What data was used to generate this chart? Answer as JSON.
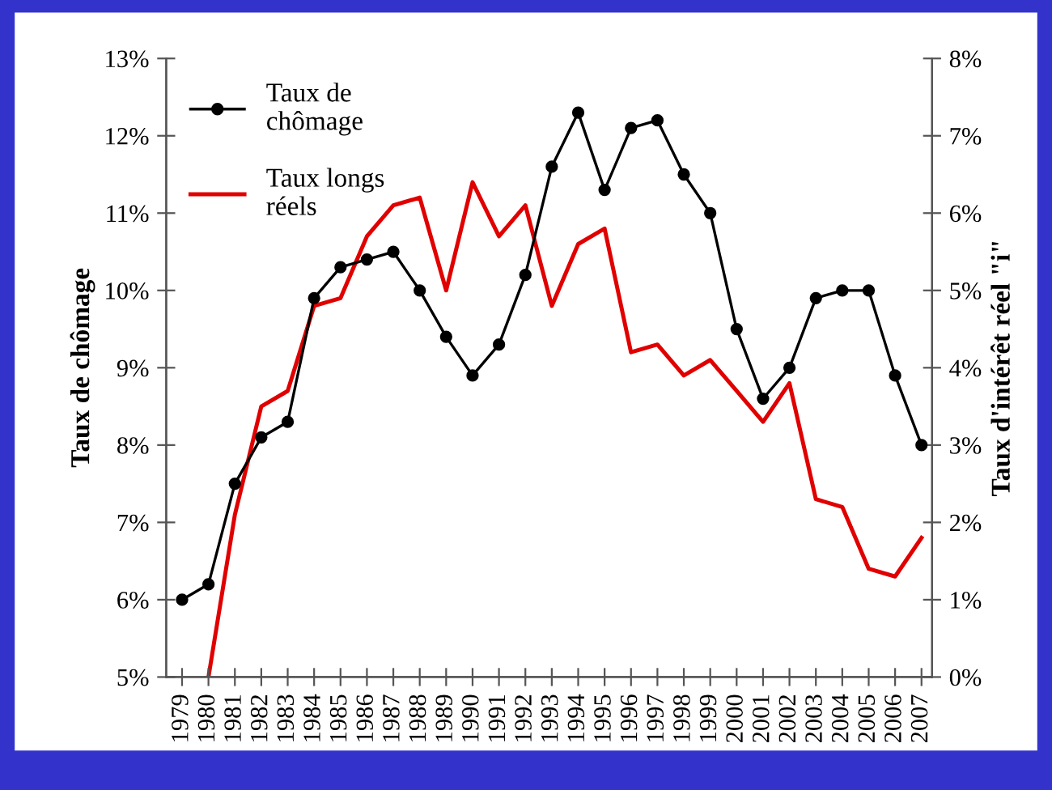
{
  "chart_data": {
    "type": "line",
    "ylabel": "Taux de chômage",
    "y2label": "Taux d'intérêt réel \"i\"",
    "categories": [
      "1979",
      "1980",
      "1981",
      "1982",
      "1983",
      "1984",
      "1985",
      "1986",
      "1987",
      "1988",
      "1989",
      "1990",
      "1991",
      "1992",
      "1993",
      "1994",
      "1995",
      "1996",
      "1997",
      "1998",
      "1999",
      "2000",
      "2001",
      "2002",
      "2003",
      "2004",
      "2005",
      "2006",
      "2007"
    ],
    "series": [
      {
        "name": "Taux de\nchômage",
        "color": "#000000",
        "marker": "circle",
        "values": [
          6.0,
          6.2,
          7.5,
          8.1,
          8.3,
          9.9,
          10.3,
          10.4,
          10.5,
          10.0,
          9.4,
          8.9,
          9.3,
          10.2,
          11.6,
          12.3,
          11.3,
          12.1,
          12.2,
          11.5,
          11.0,
          9.5,
          8.6,
          9.0,
          9.9,
          10.0,
          10.0,
          8.9,
          8.0
        ]
      },
      {
        "name": "Taux longs\nréels",
        "color": "#e00000",
        "axis": "y2",
        "values": [
          null,
          0.0,
          2.1,
          3.5,
          3.7,
          4.8,
          4.9,
          5.7,
          6.1,
          6.2,
          5.0,
          6.4,
          5.7,
          6.1,
          4.8,
          5.6,
          5.8,
          4.2,
          4.3,
          3.9,
          4.1,
          3.7,
          3.3,
          3.8,
          2.3,
          2.2,
          1.4,
          1.3,
          1.8
        ]
      }
    ],
    "ylim": [
      5,
      13
    ],
    "yticks": [
      {
        "value": 5,
        "label": "5%"
      },
      {
        "value": 6,
        "label": "6%"
      },
      {
        "value": 7,
        "label": "7%"
      },
      {
        "value": 8,
        "label": "8%"
      },
      {
        "value": 9,
        "label": "9%"
      },
      {
        "value": 10,
        "label": "10%"
      },
      {
        "value": 11,
        "label": "11%"
      },
      {
        "value": 12,
        "label": "12%"
      },
      {
        "value": 13,
        "label": "13%"
      }
    ],
    "y2lim": [
      0,
      8
    ],
    "y2ticks": [
      {
        "value": 0,
        "label": "0%"
      },
      {
        "value": 1,
        "label": "1%"
      },
      {
        "value": 2,
        "label": "2%"
      },
      {
        "value": 3,
        "label": "3%"
      },
      {
        "value": 4,
        "label": "4%"
      },
      {
        "value": 5,
        "label": "5%"
      },
      {
        "value": 6,
        "label": "6%"
      },
      {
        "value": 7,
        "label": "7%"
      },
      {
        "value": 8,
        "label": "8%"
      }
    ],
    "grid": false,
    "legend": "top left"
  }
}
